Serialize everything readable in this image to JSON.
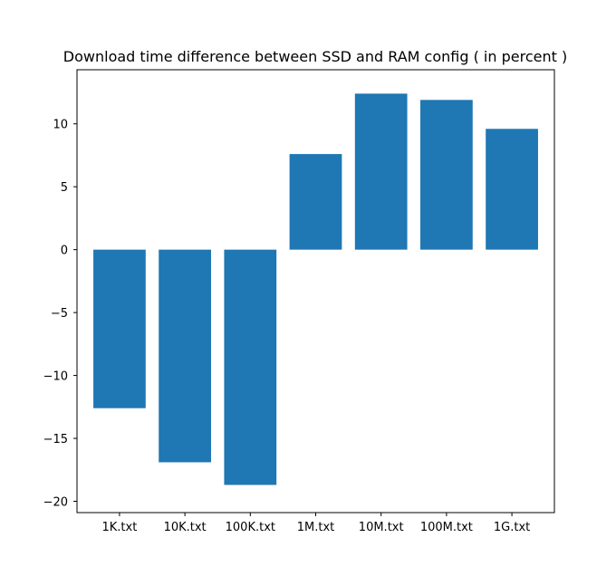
{
  "chart_data": {
    "type": "bar",
    "title": "Download time difference between SSD and RAM config ( in percent )",
    "xlabel": "",
    "ylabel": "",
    "categories": [
      "1K.txt",
      "10K.txt",
      "100K.txt",
      "1M.txt",
      "10M.txt",
      "100M.txt",
      "1G.txt"
    ],
    "values": [
      -12.6,
      -16.9,
      -18.7,
      7.6,
      12.4,
      11.9,
      9.6
    ],
    "ylim": [
      -20.9,
      14.3
    ],
    "yticks": [
      -20,
      -15,
      -10,
      -5,
      0,
      5,
      10
    ],
    "ytick_labels": [
      "−20",
      "−15",
      "−10",
      "−5",
      "0",
      "5",
      "10"
    ],
    "bar_color": "#1f77b4",
    "grid": false,
    "legend": "none"
  }
}
